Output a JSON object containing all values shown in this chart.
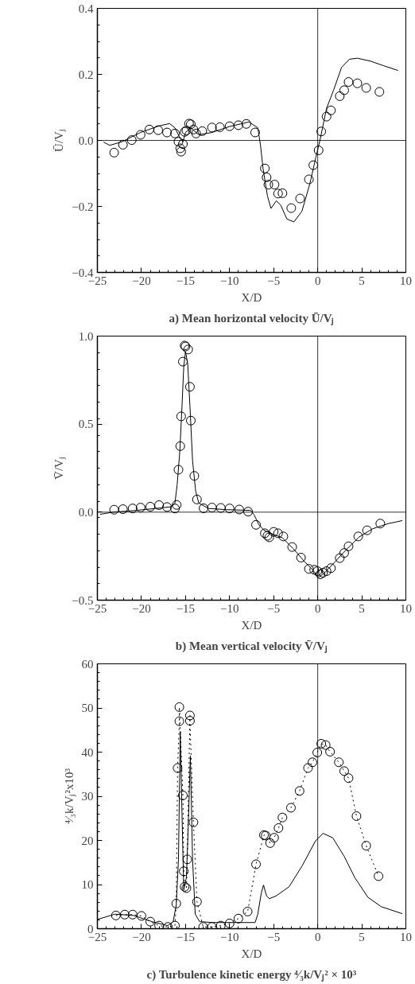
{
  "chart_data": [
    {
      "type": "scatter",
      "title": "a) Mean horizontal velocity Ū/Vⱼ",
      "xlabel": "X/D",
      "ylabel": "Ū/Vⱼ",
      "xlim": [
        -25,
        10
      ],
      "xticks": [
        {
          "value": -25,
          "label": "−25"
        },
        {
          "value": -20,
          "label": "−20"
        },
        {
          "value": -15,
          "label": "−15"
        },
        {
          "value": -10,
          "label": "−10"
        },
        {
          "value": -5,
          "label": "−5"
        },
        0,
        5,
        10
      ],
      "ylim": [
        -0.4,
        0.4
      ],
      "yticks": [
        {
          "value": -0.4,
          "label": "−0.4"
        },
        {
          "value": -0.2,
          "label": "−0.2"
        },
        {
          "value": 0,
          "label": "0.0"
        },
        0.2,
        0.4
      ],
      "grid": false,
      "ref_lines": [
        {
          "axis": "x",
          "value": 0
        },
        {
          "axis": "y",
          "value": 0
        }
      ],
      "series": [
        {
          "marker": "circle",
          "color": "#000000",
          "x": [
            -23.1,
            -22.1,
            -21.1,
            -20.1,
            -19.1,
            -18.1,
            -17.1,
            -16.2,
            -15.8,
            -15.6,
            -15.5,
            -15.3,
            -15.1,
            -14.9,
            -14.6,
            -14.4,
            -14.1,
            -13.8,
            -13.1,
            -12.0,
            -11.1,
            -10.0,
            -9.0,
            -8.1,
            -7.1,
            -6.0,
            -5.8,
            -5.6,
            -4.9,
            -4.5,
            -4.0,
            -3.0,
            -2.0,
            -1.0,
            -0.5,
            0.1,
            0.4,
            1.0,
            1.5,
            2.5,
            3.0,
            3.5,
            4.5,
            5.5,
            7.0
          ],
          "values": [
            -0.037,
            -0.013,
            0.001,
            0.017,
            0.033,
            0.031,
            0.024,
            0.021,
            -0.004,
            -0.024,
            -0.034,
            -0.011,
            0.026,
            0.03,
            0.051,
            0.049,
            0.033,
            0.021,
            0.028,
            0.039,
            0.04,
            0.043,
            0.046,
            0.05,
            0.024,
            -0.085,
            -0.112,
            -0.134,
            -0.134,
            -0.161,
            -0.16,
            -0.205,
            -0.176,
            -0.118,
            -0.075,
            -0.03,
            0.027,
            0.072,
            0.091,
            0.134,
            0.152,
            0.177,
            0.173,
            0.159,
            0.147
          ]
        },
        {
          "type": "line",
          "line_style": "solid",
          "color": "#000000",
          "x": [
            -24.3,
            -23.6,
            -22.2,
            -20.1,
            -18.0,
            -16.8,
            -16.2,
            -15.6,
            -15.3,
            -15.0,
            -14.4,
            -13.5,
            -12.0,
            -10.0,
            -7.8,
            -6.8,
            -6.5,
            -6.2,
            -5.7,
            -5.3,
            -4.7,
            -4.2,
            -3.5,
            -2.7,
            -1.8,
            -0.9,
            -0.2,
            0.3,
            1.0,
            1.8,
            2.7,
            3.6,
            4.5,
            6.0,
            7.5,
            9.1
          ],
          "values": [
            -0.005,
            -0.015,
            -0.004,
            0.024,
            0.044,
            0.051,
            0.038,
            0.005,
            -0.004,
            0.024,
            0.038,
            0.017,
            0.024,
            0.042,
            0.056,
            0.038,
            -0.013,
            -0.086,
            -0.169,
            -0.206,
            -0.183,
            -0.196,
            -0.238,
            -0.247,
            -0.215,
            -0.132,
            -0.05,
            0.006,
            0.097,
            0.152,
            0.221,
            0.246,
            0.249,
            0.24,
            0.226,
            0.212
          ]
        }
      ]
    },
    {
      "type": "scatter",
      "title": "b) Mean vertical velocity V̄/Vⱼ",
      "xlabel": "X/D",
      "ylabel": "V̄/Vⱼ",
      "xlim": [
        -25,
        10
      ],
      "xticks": [
        {
          "value": -25,
          "label": "−25"
        },
        {
          "value": -20,
          "label": "−20"
        },
        {
          "value": -15,
          "label": "−15"
        },
        {
          "value": -10,
          "label": "−10"
        },
        {
          "value": -5,
          "label": "−5"
        },
        0,
        5,
        10
      ],
      "ylim": [
        -0.5,
        1.0
      ],
      "yticks": [
        {
          "value": -0.5,
          "label": "−0.5"
        },
        {
          "value": 0,
          "label": "0.0"
        },
        0.5,
        {
          "value": 1.0,
          "label": "1.0"
        }
      ],
      "grid": false,
      "ref_lines": [
        {
          "axis": "x",
          "value": 0
        },
        {
          "axis": "y",
          "value": 0
        }
      ],
      "series": [
        {
          "marker": "circle",
          "color": "#000000",
          "x": [
            -23.1,
            -22.1,
            -21.0,
            -20.1,
            -19.0,
            -18.0,
            -17.1,
            -16.2,
            -16.0,
            -15.8,
            -15.6,
            -15.5,
            -15.3,
            -15.1,
            -15.0,
            -14.7,
            -14.5,
            -14.4,
            -14.0,
            -13.7,
            -12.95,
            -12.0,
            -11.0,
            -10.0,
            -8.9,
            -7.9,
            -7.0,
            -6.0,
            -5.7,
            -5.5,
            -5.0,
            -4.5,
            -3.9,
            -2.9,
            -1.9,
            -1.0,
            -0.4,
            -0.04,
            0.3,
            0.6,
            1.0,
            1.5,
            2.5,
            3.0,
            3.5,
            4.6,
            5.6,
            7.1
          ],
          "values": [
            0.014,
            0.017,
            0.021,
            0.026,
            0.031,
            0.04,
            0.029,
            0.021,
            0.041,
            0.241,
            0.375,
            0.544,
            0.855,
            0.946,
            0.941,
            0.924,
            0.712,
            0.52,
            0.206,
            0.072,
            0.022,
            0.026,
            0.024,
            0.021,
            0.015,
            0.003,
            -0.072,
            -0.12,
            -0.134,
            -0.143,
            -0.112,
            -0.12,
            -0.138,
            -0.198,
            -0.258,
            -0.322,
            -0.327,
            -0.335,
            -0.353,
            -0.344,
            -0.335,
            -0.318,
            -0.261,
            -0.232,
            -0.194,
            -0.138,
            -0.103,
            -0.065
          ]
        },
        {
          "type": "line",
          "line_style": "solid",
          "color": "#000000",
          "x": [
            -24.7,
            -23.2,
            -20.8,
            -17.8,
            -16.6,
            -16.2,
            -15.95,
            -15.65,
            -15.4,
            -15.2,
            -15.0,
            -14.75,
            -14.5,
            -14.2,
            -13.85,
            -13.5,
            -12.4,
            -10.3,
            -7.6,
            -7.2,
            -6.7,
            -6.1,
            -4.9,
            -4.0,
            -2.8,
            -1.6,
            -0.6,
            0.1,
            0.8,
            2.0,
            3.2,
            4.7,
            6.2,
            8.0,
            9.6
          ],
          "values": [
            -0.012,
            0.0,
            0.009,
            0.024,
            0.031,
            0.052,
            0.155,
            0.344,
            0.602,
            0.826,
            0.912,
            0.843,
            0.602,
            0.292,
            0.12,
            0.052,
            0.021,
            0.014,
            0.01,
            -0.017,
            -0.069,
            -0.103,
            -0.129,
            -0.146,
            -0.206,
            -0.275,
            -0.327,
            -0.37,
            -0.344,
            -0.28,
            -0.215,
            -0.141,
            -0.095,
            -0.065,
            -0.048
          ]
        }
      ]
    },
    {
      "type": "line",
      "title": "c) Turbulence kinetic energy ⁴⁄₃k/Vⱼ² × 10³",
      "xlabel": "X/D",
      "ylabel": "⁴⁄₃k/Vⱼ²x10³",
      "xlim": [
        -25,
        10
      ],
      "xticks": [
        {
          "value": -25,
          "label": "−25"
        },
        {
          "value": -20,
          "label": "−20"
        },
        {
          "value": -15,
          "label": "−15"
        },
        {
          "value": -10,
          "label": "−10"
        },
        {
          "value": -5,
          "label": "−5"
        },
        0,
        5,
        10
      ],
      "ylim": [
        0,
        60
      ],
      "yticks": [
        0,
        10,
        20,
        30,
        40,
        50,
        60
      ],
      "grid": false,
      "ref_lines": [
        {
          "axis": "x",
          "value": 0
        }
      ],
      "series": [
        {
          "marker": "circle",
          "line_style": "dotted",
          "color": "#000000",
          "x": [
            -22.9,
            -21.9,
            -21.0,
            -20.0,
            -19.0,
            -18.0,
            -17.0,
            -16.2,
            -16.05,
            -15.9,
            -15.7,
            -15.7,
            -15.3,
            -15.2,
            -15.1,
            -14.9,
            -14.8,
            -14.5,
            -14.5,
            -14.1,
            -13.7,
            -13.0,
            -12.0,
            -11.0,
            -10.0,
            -9.0,
            -7.95,
            -7.0,
            -6.1,
            -5.9,
            -5.4,
            -4.95,
            -4.45,
            -4.0,
            -3.04,
            -2.06,
            -1.1,
            -0.6,
            -0.05,
            0.4,
            0.9,
            1.4,
            2.4,
            3.0,
            3.5,
            4.4,
            5.5,
            6.9
          ],
          "values": [
            3.0,
            3.2,
            3.2,
            2.9,
            1.6,
            0.7,
            0.4,
            0.7,
            5.7,
            36.4,
            47.0,
            50.2,
            30.2,
            13.0,
            9.5,
            9.2,
            15.7,
            48.3,
            47.1,
            24.1,
            6.1,
            0.4,
            0.4,
            0.7,
            1.2,
            2.3,
            3.9,
            14.6,
            21.2,
            21.1,
            19.4,
            20.6,
            22.8,
            25.2,
            27.4,
            31.2,
            36.4,
            37.7,
            39.9,
            41.9,
            41.6,
            40.1,
            37.7,
            35.7,
            34.1,
            25.5,
            18.8,
            11.9
          ]
        },
        {
          "line_style": "solid",
          "color": "#000000",
          "x": [
            -25.0,
            -23.0,
            -20.9,
            -18.8,
            -17.0,
            -16.4,
            -16.05,
            -15.8,
            -15.6,
            -15.4,
            -15.2,
            -14.9,
            -14.7,
            -14.45,
            -14.2,
            -13.9,
            -13.4,
            -11.9,
            -9.2,
            -7.1,
            -6.8,
            -6.4,
            -6.15,
            -5.8,
            -5.5,
            -4.75,
            -3.25,
            -1.75,
            -0.25,
            0.6,
            1.7,
            3.0,
            4.2,
            5.7,
            7.2,
            9.6
          ],
          "values": [
            2.1,
            3.3,
            3.0,
            1.6,
            0.7,
            1.6,
            5.4,
            15.7,
            44.7,
            26.1,
            8.8,
            11.6,
            22.6,
            39.2,
            15.7,
            3.3,
            1.6,
            1.4,
            1.4,
            1.4,
            3.3,
            8.1,
            9.9,
            7.4,
            6.8,
            7.4,
            9.5,
            14.3,
            19.9,
            21.6,
            20.6,
            16.4,
            11.6,
            7.1,
            5.0,
            3.4
          ]
        }
      ]
    }
  ]
}
